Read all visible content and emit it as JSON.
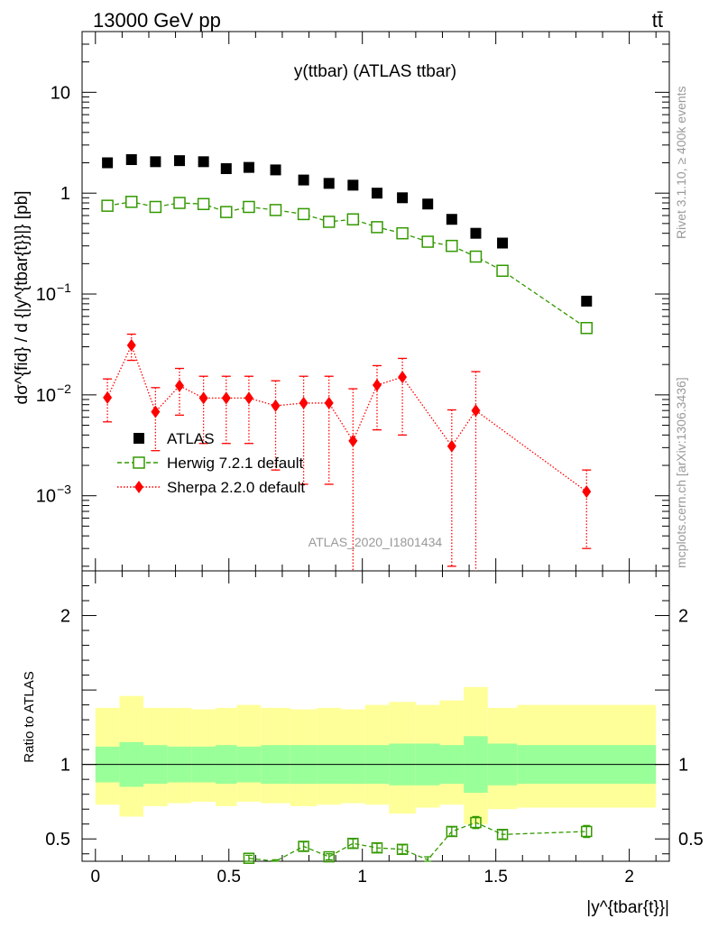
{
  "header": {
    "energy_label": "13000 GeV pp",
    "process_label": "tt̄"
  },
  "side_labels": {
    "rivet": "Rivet 3.1.10, ≥ 400k events",
    "mcplots": "mcplots.cern.ch [arXiv:1306.3436]"
  },
  "chart_data": {
    "type": "scatter",
    "title": "y(ttbar) (ATLAS ttbar)",
    "analysis_label": "ATLAS_2020_I1801434",
    "xlabel": "|y^{tbar{t}}|",
    "ylabel": "dσ^{fid} / d {|y^{tbar{t}}|} [pb]",
    "ratio_ylabel": "Ratio to ATLAS",
    "xlim": [
      -0.05,
      2.15
    ],
    "ylim_main": [
      0.00018,
      40
    ],
    "ylim_ratio": [
      0.35,
      2.3
    ],
    "y_scale_main": "log",
    "x_ticks": [
      "0",
      "0.5",
      "1",
      "1.5",
      "2"
    ],
    "main_y_ticks": [
      "10^-3",
      "10^-2",
      "10^-1",
      "1",
      "10"
    ],
    "ratio_y_ticks": [
      "0.5",
      "1",
      "2"
    ],
    "legend": {
      "position": "lower-left",
      "entries": [
        "ATLAS",
        "Herwig 7.2.1 default",
        "Sherpa 2.2.0 default"
      ]
    },
    "bin_edges": [
      0,
      0.09,
      0.18,
      0.27,
      0.36,
      0.45,
      0.53,
      0.62,
      0.73,
      0.83,
      0.92,
      1.01,
      1.1,
      1.2,
      1.29,
      1.38,
      1.47,
      1.58,
      2.1
    ],
    "x": [
      0.045,
      0.135,
      0.225,
      0.315,
      0.405,
      0.49,
      0.575,
      0.675,
      0.78,
      0.875,
      0.965,
      1.055,
      1.15,
      1.245,
      1.335,
      1.425,
      1.525,
      1.84
    ],
    "series": [
      {
        "name": "ATLAS",
        "values": [
          2.0,
          2.15,
          2.05,
          2.1,
          2.05,
          1.75,
          1.8,
          1.7,
          1.35,
          1.25,
          1.2,
          1.0,
          0.9,
          0.78,
          0.55,
          0.4,
          0.32,
          0.085
        ],
        "color": "#000000",
        "marker": "filled-square"
      },
      {
        "name": "Herwig 7.2.1 default",
        "values": [
          0.75,
          0.82,
          0.73,
          0.8,
          0.78,
          0.65,
          0.73,
          0.68,
          0.62,
          0.52,
          0.55,
          0.46,
          0.4,
          0.33,
          0.3,
          0.235,
          0.17,
          0.046
        ],
        "color": "#339900",
        "marker": "open-square",
        "line": "dashed"
      },
      {
        "name": "Sherpa 2.2.0 default",
        "values": [
          0.0094,
          0.031,
          0.0068,
          0.0123,
          0.0093,
          0.0093,
          0.0093,
          0.0078,
          0.0083,
          0.0083,
          0.0035,
          0.0125,
          0.015,
          null,
          0.0031,
          0.007,
          null,
          0.0011
        ],
        "err_low": [
          0.004,
          0.009,
          0.004,
          0.006,
          0.006,
          0.006,
          0.006,
          0.006,
          0.007,
          0.007,
          0.0034,
          0.008,
          0.011,
          null,
          0.0029,
          0.0069,
          null,
          0.0008
        ],
        "err_high": [
          0.005,
          0.009,
          0.005,
          0.006,
          0.006,
          0.006,
          0.006,
          0.006,
          0.007,
          0.007,
          0.008,
          0.007,
          0.008,
          null,
          0.004,
          0.01,
          null,
          0.0007
        ],
        "color": "#ff0000",
        "marker": "filled-diamond",
        "line": "dotted"
      }
    ],
    "ratio": {
      "reference": 1.0,
      "herwig_values": [
        null,
        null,
        null,
        null,
        null,
        null,
        0.37,
        0.34,
        0.45,
        0.38,
        0.47,
        0.44,
        0.43,
        0.36,
        0.55,
        0.61,
        0.53,
        0.55
      ],
      "herwig_err": [
        0,
        0,
        0,
        0,
        0,
        0,
        0.02,
        0.02,
        0.03,
        0.02,
        0.03,
        0.03,
        0.03,
        0.02,
        0.03,
        0.04,
        0.03,
        0.04
      ],
      "band_stat_low": [
        0.88,
        0.85,
        0.87,
        0.88,
        0.88,
        0.87,
        0.88,
        0.87,
        0.87,
        0.87,
        0.87,
        0.87,
        0.86,
        0.86,
        0.87,
        0.81,
        0.86,
        0.87
      ],
      "band_stat_high": [
        1.12,
        1.15,
        1.13,
        1.12,
        1.12,
        1.13,
        1.12,
        1.13,
        1.13,
        1.13,
        1.13,
        1.13,
        1.14,
        1.14,
        1.13,
        1.19,
        1.14,
        1.13
      ],
      "band_total_low": [
        0.73,
        0.65,
        0.72,
        0.74,
        0.75,
        0.72,
        0.75,
        0.74,
        0.72,
        0.73,
        0.74,
        0.73,
        0.67,
        0.71,
        0.73,
        0.6,
        0.7,
        0.71
      ],
      "band_total_high": [
        1.38,
        1.46,
        1.38,
        1.38,
        1.37,
        1.38,
        1.4,
        1.38,
        1.37,
        1.38,
        1.37,
        1.4,
        1.42,
        1.4,
        1.43,
        1.52,
        1.38,
        1.4
      ],
      "band_colors": {
        "stat": "#99ff99",
        "total": "#ffff99"
      }
    }
  }
}
